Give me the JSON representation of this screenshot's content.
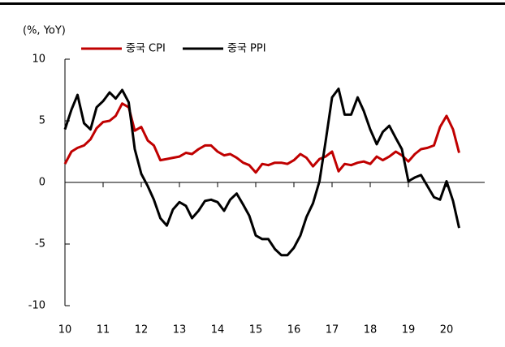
{
  "chart_data": {
    "type": "line",
    "unit_label": "(%, YoY)",
    "x": [
      10,
      10.17,
      10.33,
      10.5,
      10.67,
      10.83,
      11,
      11.17,
      11.33,
      11.5,
      11.67,
      11.83,
      12,
      12.17,
      12.33,
      12.5,
      12.67,
      12.83,
      13,
      13.17,
      13.33,
      13.5,
      13.67,
      13.83,
      14,
      14.17,
      14.33,
      14.5,
      14.67,
      14.83,
      15,
      15.17,
      15.33,
      15.5,
      15.67,
      15.83,
      16,
      16.17,
      16.33,
      16.5,
      16.67,
      16.83,
      17,
      17.17,
      17.33,
      17.5,
      17.67,
      17.83,
      18,
      18.17,
      18.33,
      18.5,
      18.67,
      18.83,
      19,
      19.17,
      19.33,
      19.5,
      19.67,
      19.83,
      20,
      20.17,
      20.33
    ],
    "series": [
      {
        "name": "중국 CPI",
        "color": "#c00000",
        "values": [
          1.5,
          2.5,
          2.8,
          3.0,
          3.5,
          4.4,
          4.9,
          5.0,
          5.4,
          6.4,
          6.1,
          4.2,
          4.5,
          3.4,
          3.0,
          1.8,
          1.9,
          2.0,
          2.1,
          2.4,
          2.3,
          2.7,
          3.0,
          3.0,
          2.5,
          2.2,
          2.3,
          2.0,
          1.6,
          1.4,
          0.8,
          1.5,
          1.4,
          1.6,
          1.6,
          1.5,
          1.8,
          2.3,
          2.0,
          1.3,
          1.9,
          2.1,
          2.5,
          0.9,
          1.5,
          1.4,
          1.6,
          1.7,
          1.5,
          2.1,
          1.8,
          2.1,
          2.5,
          2.2,
          1.7,
          2.3,
          2.7,
          2.8,
          3.0,
          4.5,
          5.4,
          4.3,
          2.4
        ]
      },
      {
        "name": "중국 PPI",
        "color": "#000000",
        "values": [
          4.3,
          5.9,
          7.1,
          4.8,
          4.3,
          6.1,
          6.6,
          7.3,
          6.8,
          7.5,
          6.5,
          2.7,
          0.7,
          -0.3,
          -1.4,
          -2.9,
          -3.5,
          -2.2,
          -1.6,
          -1.9,
          -2.9,
          -2.3,
          -1.5,
          -1.4,
          -1.6,
          -2.3,
          -1.4,
          -0.9,
          -1.8,
          -2.7,
          -4.3,
          -4.6,
          -4.6,
          -5.4,
          -5.9,
          -5.9,
          -5.3,
          -4.3,
          -2.8,
          -1.7,
          0.1,
          3.3,
          6.9,
          7.6,
          5.5,
          5.5,
          6.9,
          5.8,
          4.3,
          3.1,
          4.1,
          4.6,
          3.6,
          2.7,
          0.1,
          0.4,
          0.6,
          -0.3,
          -1.2,
          -1.4,
          0.1,
          -1.5,
          -3.7
        ]
      }
    ],
    "xlim": [
      10,
      21
    ],
    "xticks": [
      10,
      11,
      12,
      13,
      14,
      15,
      16,
      17,
      18,
      19,
      20
    ],
    "ylim": [
      -10,
      10
    ],
    "yticks": [
      -10,
      -5,
      0,
      5,
      10
    ],
    "legend": "top"
  }
}
